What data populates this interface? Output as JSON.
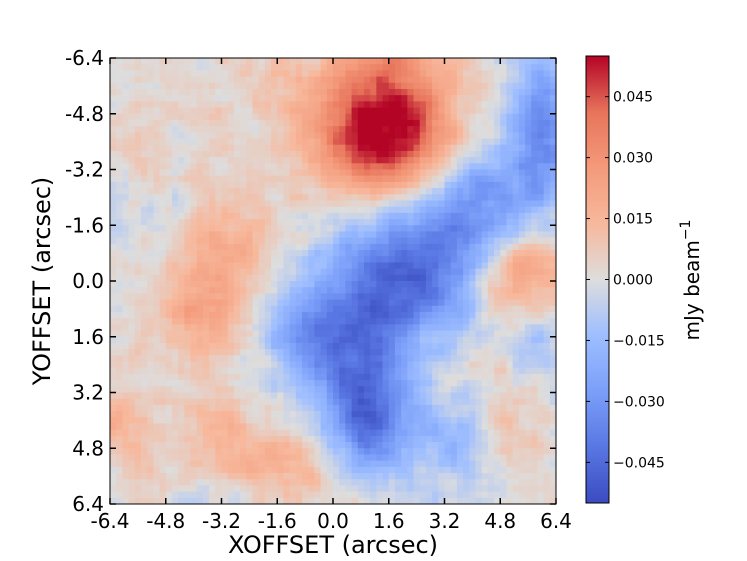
{
  "chart_data": {
    "type": "heatmap",
    "xlabel": "XOFFSET (arcsec)",
    "ylabel": "YOFFSET (arcsec)",
    "x_ticks": [
      "-6.4",
      "-4.8",
      "-3.2",
      "-1.6",
      "0.0",
      "1.6",
      "3.2",
      "4.8",
      "6.4"
    ],
    "y_ticks": [
      "-6.4",
      "-4.8",
      "-3.2",
      "-1.6",
      "0.0",
      "1.6",
      "3.2",
      "4.8",
      "6.4"
    ],
    "xlim": [
      -6.4,
      6.4
    ],
    "ylim": [
      -6.4,
      6.4
    ],
    "y_axis_direction": "top-to-bottom increasing",
    "colormap": "coolwarm",
    "colorbar": {
      "label": "mJy beam",
      "label_superscript": "−1",
      "vmin": -0.055,
      "vmax": 0.055,
      "ticks": [
        "0.045",
        "0.030",
        "0.015",
        "0.000",
        "−0.015",
        "−0.030",
        "−0.045"
      ],
      "tick_values": [
        0.045,
        0.03,
        0.015,
        0.0,
        -0.015,
        -0.03,
        -0.045
      ],
      "placement": "right"
    },
    "grid_size": 72,
    "features": [
      {
        "x": 1.6,
        "y": -5.0,
        "value": 0.045,
        "sx": 1.3,
        "sy": 1.6
      },
      {
        "x": 1.1,
        "y": -3.8,
        "value": 0.026,
        "sx": 1.4,
        "sy": 0.9
      },
      {
        "x": -3.2,
        "y": -0.6,
        "value": 0.018,
        "sx": 1.1,
        "sy": 1.7
      },
      {
        "x": -4.0,
        "y": 1.2,
        "value": 0.014,
        "sx": 0.8,
        "sy": 0.8
      },
      {
        "x": 5.4,
        "y": -0.2,
        "value": 0.026,
        "sx": 0.9,
        "sy": 1.2
      },
      {
        "x": -2.0,
        "y": 5.5,
        "value": 0.02,
        "sx": 1.3,
        "sy": 0.9
      },
      {
        "x": -5.3,
        "y": -3.5,
        "value": 0.01,
        "sx": 1.0,
        "sy": 1.0
      },
      {
        "x": -5.9,
        "y": 4.4,
        "value": 0.012,
        "sx": 0.8,
        "sy": 1.0
      },
      {
        "x": 5.0,
        "y": 4.0,
        "value": 0.012,
        "sx": 0.9,
        "sy": 1.1
      },
      {
        "x": -1.6,
        "y": -5.5,
        "value": 0.008,
        "sx": 1.2,
        "sy": 0.8
      },
      {
        "x": 2.1,
        "y": -0.2,
        "value": -0.046,
        "sx": 1.5,
        "sy": 1.3
      },
      {
        "x": 0.6,
        "y": 2.2,
        "value": -0.032,
        "sx": 1.0,
        "sy": 1.4
      },
      {
        "x": 1.1,
        "y": 4.1,
        "value": -0.036,
        "sx": 0.8,
        "sy": 1.1
      },
      {
        "x": -1.0,
        "y": 1.4,
        "value": -0.022,
        "sx": 0.9,
        "sy": 0.9
      },
      {
        "x": 4.3,
        "y": -2.2,
        "value": -0.03,
        "sx": 1.1,
        "sy": 1.1
      },
      {
        "x": 6.0,
        "y": -4.2,
        "value": -0.035,
        "sx": 0.6,
        "sy": 1.6
      },
      {
        "x": -4.8,
        "y": -2.6,
        "value": -0.01,
        "sx": 1.0,
        "sy": 0.9
      },
      {
        "x": 3.6,
        "y": 4.6,
        "value": -0.016,
        "sx": 0.9,
        "sy": 0.9
      },
      {
        "x": -3.5,
        "y": 4.0,
        "value": 0.008,
        "sx": 0.9,
        "sy": 0.7
      },
      {
        "x": -2.6,
        "y": 6.1,
        "value": -0.012,
        "sx": 1.0,
        "sy": 0.5
      },
      {
        "x": 5.8,
        "y": 1.8,
        "value": -0.018,
        "sx": 0.6,
        "sy": 0.8
      }
    ],
    "noise_amplitude": 0.006
  }
}
